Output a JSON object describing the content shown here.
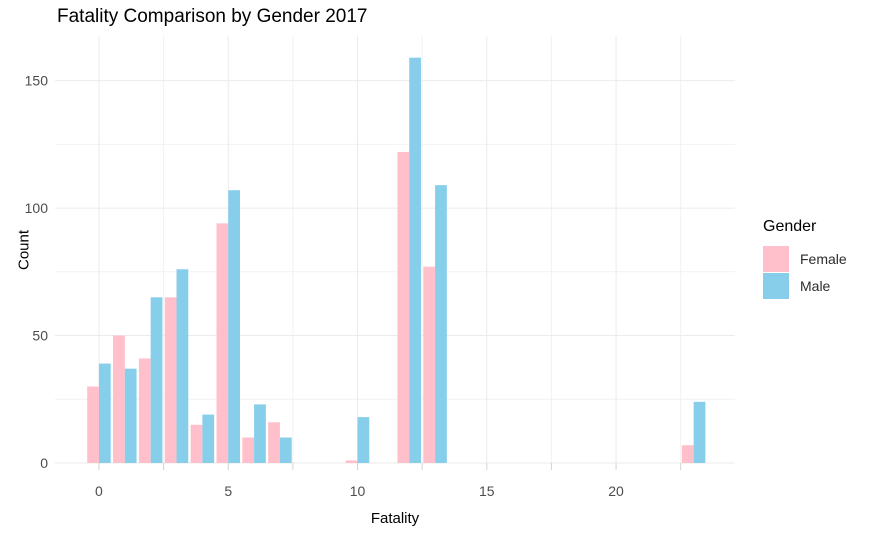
{
  "chart_data": {
    "type": "bar",
    "title": "Fatality Comparison by Gender 2017",
    "xlabel": "Fatality",
    "ylabel": "Count",
    "legend_title": "Gender",
    "legend_position": "right",
    "grid": true,
    "categories": [
      0,
      1,
      2,
      3,
      4,
      5,
      6,
      7,
      10,
      12,
      13,
      23
    ],
    "series": [
      {
        "name": "Female",
        "color": "#FFC0CB",
        "values": [
          30,
          50,
          41,
          65,
          15,
          94,
          10,
          16,
          1,
          122,
          77,
          7
        ]
      },
      {
        "name": "Male",
        "color": "#87CEEB",
        "values": [
          39,
          37,
          65,
          76,
          19,
          107,
          23,
          10,
          18,
          159,
          109,
          24
        ]
      }
    ],
    "x_ticks": [
      0,
      5,
      10,
      15,
      20
    ],
    "x_minor_ticks": [
      2.5,
      7.5,
      12.5,
      17.5,
      22.5
    ],
    "y_ticks": [
      0,
      50,
      100,
      150
    ],
    "y_minor_ticks": [
      25,
      75,
      125
    ],
    "xlim": [
      -1.7,
      24.6
    ],
    "ylim": [
      0,
      167.5
    ],
    "colors": {
      "grid_major": "#EBEBEB",
      "grid_minor": "#F2F2F2",
      "axis_tick": "#D2D2D2",
      "axis_text": "#4D4D4D",
      "background": "#FFFFFF"
    }
  }
}
